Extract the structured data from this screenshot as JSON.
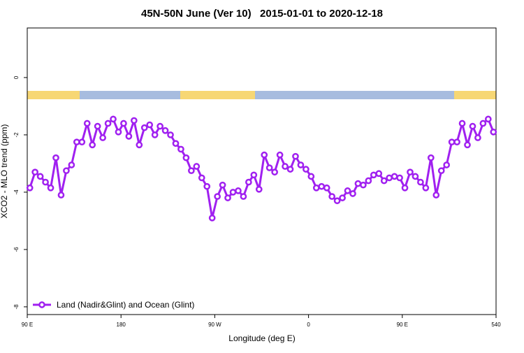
{
  "chart_data": {
    "type": "line",
    "title": "45N-50N June (Ver 10)   2015-01-01 to 2020-12-18",
    "xlabel": "Longitude (deg E)",
    "ylabel": "XCO2 - MLO trend (ppm)",
    "x": [
      92.5,
      97.5,
      102.5,
      107.5,
      112.5,
      117.5,
      122.5,
      127.5,
      132.5,
      137.5,
      142.5,
      147.5,
      152.5,
      157.5,
      162.5,
      167.5,
      172.5,
      177.5,
      182.5,
      187.5,
      192.5,
      197.5,
      202.5,
      207.5,
      212.5,
      217.5,
      222.5,
      227.5,
      232.5,
      237.5,
      242.5,
      247.5,
      252.5,
      257.5,
      262.5,
      267.5,
      272.5,
      277.5,
      282.5,
      287.5,
      292.5,
      297.5,
      302.5,
      307.5,
      312.5,
      317.5,
      322.5,
      327.5,
      332.5,
      337.5,
      342.5,
      347.5,
      352.5,
      357.5,
      362.5,
      367.5,
      372.5,
      377.5,
      382.5,
      387.5,
      392.5,
      397.5,
      402.5,
      407.5,
      412.5,
      417.5,
      422.5,
      427.5,
      432.5,
      437.5,
      442.5,
      447.5,
      452.5,
      457.5,
      462.5,
      467.5,
      472.5,
      477.5,
      482.5,
      487.5,
      492.5,
      497.5,
      502.5,
      507.5,
      512.5,
      517.5,
      522.5,
      527.5,
      532.5,
      537.5
    ],
    "series": [
      {
        "name": "Land (Nadir&Glint) and Ocean (Glint)",
        "color": "#a020f0",
        "values": [
          -3.85,
          -3.3,
          -3.45,
          -3.65,
          -3.85,
          -2.8,
          -4.1,
          -3.25,
          -3.05,
          -2.25,
          -2.25,
          -1.6,
          -2.35,
          -1.7,
          -2.1,
          -1.6,
          -1.45,
          -1.9,
          -1.6,
          -2.05,
          -1.5,
          -2.35,
          -1.75,
          -1.65,
          -2.0,
          -1.7,
          -1.85,
          -2.0,
          -2.3,
          -2.5,
          -2.8,
          -3.25,
          -3.1,
          -3.5,
          -3.8,
          -4.9,
          -4.15,
          -3.75,
          -4.2,
          -4.0,
          -3.95,
          -4.15,
          -3.65,
          -3.4,
          -3.9,
          -2.7,
          -3.15,
          -3.3,
          -2.7,
          -3.1,
          -3.2,
          -2.75,
          -3.05,
          -3.2,
          -3.45,
          -3.85,
          -3.8,
          -3.85,
          -4.15,
          -4.3,
          -4.2,
          -3.95,
          -4.05,
          -3.7,
          -3.75,
          -3.6,
          -3.4,
          -3.35,
          -3.6,
          -3.5,
          -3.45,
          -3.5,
          -3.85,
          -3.3,
          -3.45,
          -3.65,
          -3.85,
          -2.8,
          -4.1,
          -3.25,
          -3.05,
          -2.25,
          -2.25,
          -1.6,
          -2.35,
          -1.7,
          -2.1,
          -1.6,
          -1.45,
          -1.9
        ]
      }
    ],
    "xlim": [
      90,
      540
    ],
    "xticks": [
      {
        "value": 90,
        "label": "90 E"
      },
      180,
      {
        "value": 270,
        "label": "90 W"
      },
      {
        "value": 360,
        "label": "0"
      },
      {
        "value": 450,
        "label": "90 E"
      },
      540
    ],
    "ylim": [
      -8.27,
      1.73
    ],
    "yticks": [
      0,
      -2,
      -4,
      -6,
      -8
    ],
    "legend": "bottomleft",
    "grid": false
  }
}
